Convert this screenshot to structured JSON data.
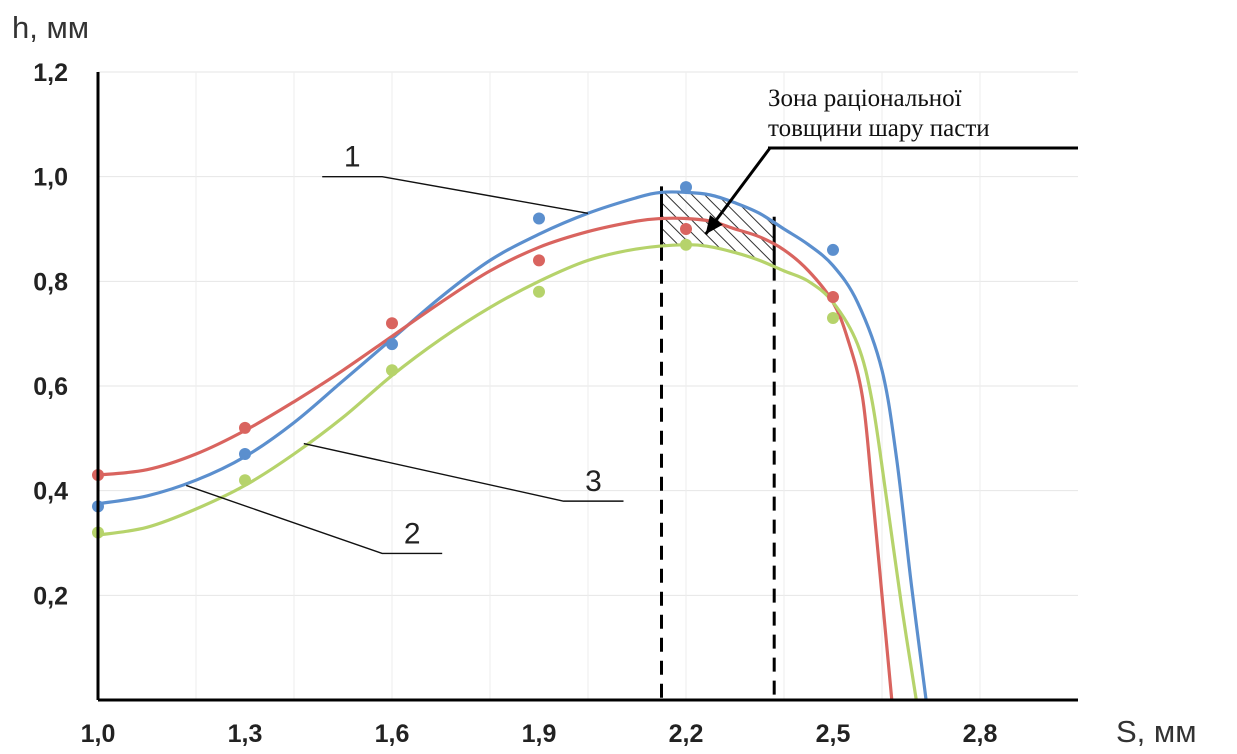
{
  "chart_data": {
    "type": "line",
    "ylabel": "h, мм",
    "xlabel": "S, мм",
    "xlim": [
      1.0,
      3.0
    ],
    "ylim": [
      0.0,
      1.2
    ],
    "grid": true,
    "x_ticks": [
      {
        "value": 1.0,
        "label": "1,0"
      },
      {
        "value": 1.3,
        "label": "1,3"
      },
      {
        "value": 1.6,
        "label": "1,6"
      },
      {
        "value": 1.9,
        "label": "1,9"
      },
      {
        "value": 2.2,
        "label": "2,2"
      },
      {
        "value": 2.5,
        "label": "2,5"
      },
      {
        "value": 2.8,
        "label": "2,8"
      }
    ],
    "y_ticks": [
      {
        "value": 0.2,
        "label": "0,2"
      },
      {
        "value": 0.4,
        "label": "0,4"
      },
      {
        "value": 0.6,
        "label": "0,6"
      },
      {
        "value": 0.8,
        "label": "0,8"
      },
      {
        "value": 1.0,
        "label": "1,0"
      },
      {
        "value": 1.2,
        "label": "1,2"
      }
    ],
    "series": [
      {
        "label": "1",
        "color": "#5b8fce",
        "points": [
          [
            1.0,
            0.37
          ],
          [
            1.3,
            0.47
          ],
          [
            1.6,
            0.68
          ],
          [
            1.9,
            0.92
          ],
          [
            2.2,
            0.98
          ],
          [
            2.5,
            0.86
          ]
        ],
        "curve": [
          [
            1.0,
            0.375
          ],
          [
            1.1,
            0.39
          ],
          [
            1.2,
            0.42
          ],
          [
            1.3,
            0.465
          ],
          [
            1.4,
            0.53
          ],
          [
            1.5,
            0.61
          ],
          [
            1.6,
            0.69
          ],
          [
            1.7,
            0.77
          ],
          [
            1.8,
            0.84
          ],
          [
            1.9,
            0.89
          ],
          [
            2.0,
            0.93
          ],
          [
            2.1,
            0.96
          ],
          [
            2.15,
            0.97
          ],
          [
            2.2,
            0.97
          ],
          [
            2.25,
            0.965
          ],
          [
            2.3,
            0.95
          ],
          [
            2.35,
            0.93
          ],
          [
            2.4,
            0.9
          ],
          [
            2.45,
            0.87
          ],
          [
            2.5,
            0.83
          ],
          [
            2.55,
            0.76
          ],
          [
            2.6,
            0.63
          ],
          [
            2.63,
            0.46
          ],
          [
            2.66,
            0.22
          ],
          [
            2.69,
            0.0
          ]
        ]
      },
      {
        "label": "2",
        "color": "#d9645f",
        "points": [
          [
            1.0,
            0.43
          ],
          [
            1.3,
            0.52
          ],
          [
            1.6,
            0.72
          ],
          [
            1.9,
            0.84
          ],
          [
            2.2,
            0.9
          ],
          [
            2.5,
            0.77
          ]
        ],
        "curve": [
          [
            1.0,
            0.43
          ],
          [
            1.1,
            0.44
          ],
          [
            1.2,
            0.47
          ],
          [
            1.3,
            0.515
          ],
          [
            1.4,
            0.57
          ],
          [
            1.5,
            0.63
          ],
          [
            1.6,
            0.695
          ],
          [
            1.7,
            0.76
          ],
          [
            1.8,
            0.82
          ],
          [
            1.9,
            0.865
          ],
          [
            2.0,
            0.895
          ],
          [
            2.1,
            0.915
          ],
          [
            2.15,
            0.92
          ],
          [
            2.2,
            0.92
          ],
          [
            2.25,
            0.915
          ],
          [
            2.3,
            0.9
          ],
          [
            2.35,
            0.885
          ],
          [
            2.4,
            0.86
          ],
          [
            2.45,
            0.82
          ],
          [
            2.5,
            0.76
          ],
          [
            2.53,
            0.69
          ],
          [
            2.56,
            0.58
          ],
          [
            2.58,
            0.4
          ],
          [
            2.6,
            0.2
          ],
          [
            2.62,
            0.0
          ]
        ]
      },
      {
        "label": "3",
        "color": "#b6d36b",
        "points": [
          [
            1.0,
            0.32
          ],
          [
            1.3,
            0.42
          ],
          [
            1.6,
            0.63
          ],
          [
            1.9,
            0.78
          ],
          [
            2.2,
            0.87
          ],
          [
            2.5,
            0.73
          ]
        ],
        "curve": [
          [
            1.0,
            0.315
          ],
          [
            1.1,
            0.33
          ],
          [
            1.2,
            0.365
          ],
          [
            1.3,
            0.41
          ],
          [
            1.4,
            0.47
          ],
          [
            1.5,
            0.54
          ],
          [
            1.6,
            0.62
          ],
          [
            1.7,
            0.69
          ],
          [
            1.8,
            0.75
          ],
          [
            1.9,
            0.8
          ],
          [
            2.0,
            0.84
          ],
          [
            2.1,
            0.862
          ],
          [
            2.2,
            0.87
          ],
          [
            2.25,
            0.866
          ],
          [
            2.3,
            0.855
          ],
          [
            2.35,
            0.84
          ],
          [
            2.4,
            0.82
          ],
          [
            2.45,
            0.8
          ],
          [
            2.5,
            0.76
          ],
          [
            2.55,
            0.68
          ],
          [
            2.58,
            0.57
          ],
          [
            2.61,
            0.38
          ],
          [
            2.64,
            0.18
          ],
          [
            2.67,
            0.0
          ]
        ]
      }
    ],
    "curve_labels": [
      {
        "text": "1",
        "at": [
          2.0,
          0.93
        ],
        "label_pos": [
          1.58,
          1.0
        ]
      },
      {
        "text": "2",
        "at": [
          1.18,
          0.41
        ],
        "label_pos": [
          1.58,
          0.28
        ]
      },
      {
        "text": "3",
        "at": [
          1.42,
          0.49
        ],
        "label_pos": [
          1.95,
          0.38
        ]
      }
    ],
    "zone": {
      "text_lines": [
        "Зона раціональної",
        "товщини шару пасти"
      ],
      "x_from": 2.15,
      "x_to": 2.38,
      "arrow_to": [
        2.24,
        0.89
      ]
    }
  }
}
